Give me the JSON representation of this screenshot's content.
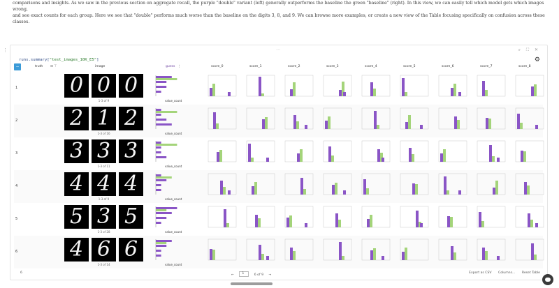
{
  "intro": {
    "line1": "comparisons and insights. As we saw in the previous section on aggregate recall, the purple \"double\" variant (left) generally outperforms the baseline the green \"baseline\" (right). In this view, we can easily tell which model gets which images wrong,",
    "line2": "and see exact counts for each group. Here we see that \"double\" performs much worse than the baseline on the digits 3, 8, and 9. We can browse more examples, or create a new view of the Table focusing specifically on confusion across these classes."
  },
  "code": {
    "prefix": "runs.summary[",
    "key": "\"test_images_10K_E5\"",
    "suffix": "]"
  },
  "columns": {
    "truth": "truth",
    "image": "image",
    "guess": "guess",
    "scores": [
      "score_0",
      "score_1",
      "score_2",
      "score_3",
      "score_4",
      "score_5",
      "score_6",
      "score_7",
      "score_8"
    ]
  },
  "rows": [
    {
      "truth": "1",
      "digits": [
        "0",
        "0",
        "0"
      ],
      "page": "1-3 of 9",
      "histA": [
        3,
        2,
        2,
        1
      ],
      "histB": [
        4,
        0,
        0,
        0
      ],
      "xlabel": "value_count"
    },
    {
      "truth": "2",
      "digits": [
        "2",
        "1",
        "2"
      ],
      "page": "1-3 of 16",
      "histA": [
        1,
        1,
        2,
        3
      ],
      "histB": [
        4,
        0,
        0,
        0
      ],
      "xlabel": "value_count"
    },
    {
      "truth": "3",
      "digits": [
        "3",
        "3",
        "3"
      ],
      "page": "1-3 of 11",
      "histA": [
        1,
        1,
        1,
        2
      ],
      "histB": [
        4,
        0,
        0,
        0
      ],
      "xlabel": "value_count"
    },
    {
      "truth": "4",
      "digits": [
        "4",
        "4",
        "4"
      ],
      "page": "1-3 of 9",
      "histA": [
        1,
        2,
        1,
        1
      ],
      "histB": [
        3,
        0,
        0,
        0
      ],
      "xlabel": "value_count"
    },
    {
      "truth": "5",
      "digits": [
        "5",
        "3",
        "5"
      ],
      "page": "1-3 of 28",
      "histA": [
        4,
        3,
        2,
        1
      ],
      "histB": [
        2,
        0,
        0,
        0
      ],
      "xlabel": "value_count"
    },
    {
      "truth": "6",
      "digits": [
        "4",
        "6",
        "6"
      ],
      "page": "1-3 of 14",
      "histA": [
        3,
        2,
        1,
        1
      ],
      "histB": [
        2,
        0,
        0,
        0
      ],
      "xlabel": "value_count"
    }
  ],
  "footer": {
    "row_count": "6",
    "pager_prev": "←",
    "page_input": "1",
    "page_text": "6 of 9",
    "pager_next": "→",
    "export": "Export as CSV",
    "columns": "Columns...",
    "reset": "Reset Table"
  },
  "colors": {
    "purple": "#8a55c6",
    "green": "#a4d47a",
    "accent": "#3c9bd8"
  }
}
